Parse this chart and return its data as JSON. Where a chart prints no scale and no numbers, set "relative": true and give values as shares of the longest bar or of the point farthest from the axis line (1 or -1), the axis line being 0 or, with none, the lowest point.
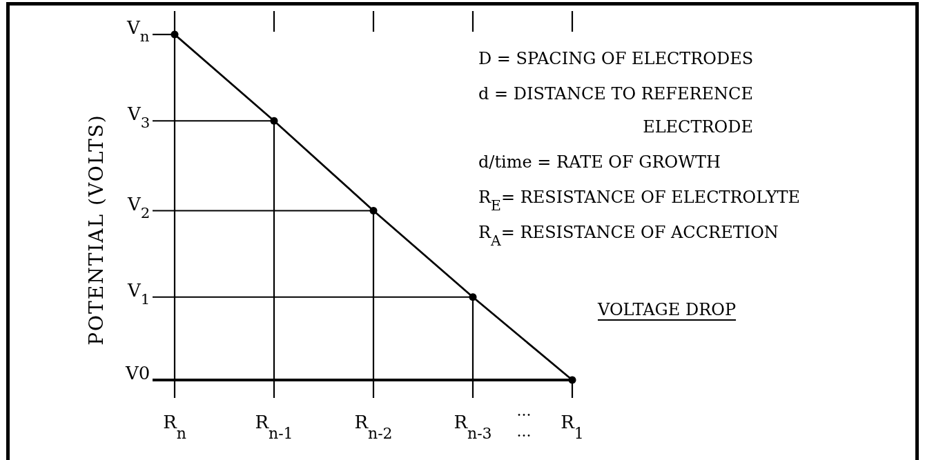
{
  "chart_data": {
    "type": "line",
    "title": "VOLTAGE DROP",
    "ylabel": "POTENTIAL (VOLTS)",
    "categories": [
      "R$_{n}$",
      "R$_{n-1}$",
      "R$_{n-2}$",
      "R$_{n-3}$",
      "R$_{1}$"
    ],
    "series": [
      {
        "type": "lollipop",
        "color": "#000000",
        "values": [
          1,
          0.75,
          0.49,
          0.24,
          0
        ]
      },
      {
        "color": "#000000",
        "marker": "none",
        "values": [
          1,
          0.75,
          0.49,
          0.24,
          0
        ]
      }
    ],
    "relative": true,
    "marker": "circle",
    "annotations": [
      "D = SPACING OF ELECTRODES",
      "d = DISTANCE TO REFERENCE\nELECTRODE",
      "d/time = RATE OF GROWTH",
      "R$_{E}$= RESISTANCE OF ELECTROLYTE",
      "R$_{A}$= RESISTANCE OF ACCRETION",
      {
        "text": "V$_{n}$",
        "x": "R$_{n}$",
        "y": 1
      },
      {
        "text": "V$_{3}$",
        "x": "R$_{n-1}$",
        "y": 0.75
      },
      {
        "text": "V$_{2}$",
        "x": "R$_{n-2}$",
        "y": 0.49
      },
      {
        "text": "V$_{1}$",
        "x": "R$_{n-3}$",
        "y": 0.24
      },
      "V0",
      "...",
      "..."
    ]
  }
}
